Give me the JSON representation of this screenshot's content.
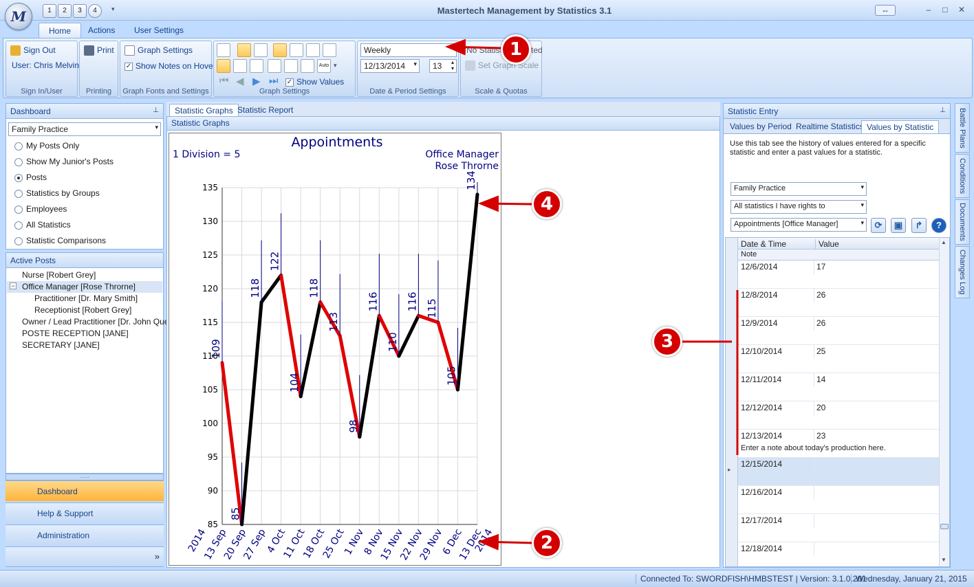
{
  "window": {
    "title": "Mastertech Management by Statistics 3.1",
    "qat": [
      "1",
      "2",
      "3",
      "4"
    ],
    "logo": "M",
    "controls": {
      "restore": "⇔",
      "minimize": "–",
      "maximize": "□",
      "close": "✕"
    }
  },
  "ribbon_tabs": [
    "Home",
    "Actions",
    "User Settings"
  ],
  "ribbon": {
    "sign_in": {
      "sign_out": "Sign Out",
      "user": "User: Chris Melvin",
      "caption": "Sign In/User"
    },
    "printing": {
      "print": "Print",
      "caption": "Printing"
    },
    "fonts": {
      "graph_settings": "Graph Settings",
      "show_notes": "Show Notes on Hover",
      "caption": "Graph Fonts and Settings"
    },
    "graph_settings": {
      "show_values": "Show Values",
      "auto": "Auto",
      "caption": "Graph Settings"
    },
    "date_period": {
      "period": "Weekly",
      "date": "12/13/2014",
      "count": "13",
      "caption": "Date & Period Settings"
    },
    "scale": {
      "no_statistic": "No Statistic Selected",
      "set_graph_scale": "Set Graph Scale",
      "caption": "Scale & Quotas"
    }
  },
  "dashboard": {
    "header": "Dashboard",
    "pin": "⊥",
    "selected": "Family Practice",
    "options": [
      "My Posts Only",
      "Show My Junior's Posts",
      "Posts",
      "Statistics by Groups",
      "Employees",
      "All Statistics",
      "Statistic Comparisons"
    ],
    "selected_option": "Posts"
  },
  "active_posts": {
    "header": "Active Posts",
    "items": [
      {
        "label": "Nurse [Robert Grey]",
        "indent": 0
      },
      {
        "label": "Office Manager [Rose Throrne]",
        "indent": 0
      },
      {
        "label": "Practitioner  [Dr. Mary Smith]",
        "indent": 1
      },
      {
        "label": "Receptionist  [Robert Grey]",
        "indent": 1
      },
      {
        "label": "Owner / Lead Practitioner  [Dr. John Que]",
        "indent": 0
      },
      {
        "label": "POSTE RECEPTION [JANE]",
        "indent": 0
      },
      {
        "label": "SECRETARY [JANE]",
        "indent": 0
      }
    ],
    "collapse": "−"
  },
  "nav_buttons": [
    "Dashboard",
    "Help & Support",
    "Administration"
  ],
  "nav_expand": "»",
  "center": {
    "tabs": [
      "Statistic Graphs",
      "Statistic Report"
    ],
    "subheader": "Statistic Graphs"
  },
  "chart_data": {
    "type": "line",
    "title": "Appointments",
    "division_label": "1 Division = 5",
    "post": "Office Manager",
    "person": "Rose Throrne",
    "x_start_label": "2014",
    "x_end_label": "2014",
    "categories": [
      "13 Sep",
      "20 Sep",
      "27 Sep",
      "4 Oct",
      "11 Oct",
      "18 Oct",
      "25 Oct",
      "1 Nov",
      "8 Nov",
      "15 Nov",
      "22 Nov",
      "29 Nov",
      "6 Dec",
      "13 Dec"
    ],
    "values": [
      109,
      85,
      118,
      122,
      104,
      118,
      113,
      98,
      116,
      110,
      116,
      115,
      105,
      134
    ],
    "ylim": [
      85,
      135
    ],
    "yticks": [
      85,
      90,
      95,
      100,
      105,
      110,
      115,
      120,
      125,
      130,
      135
    ],
    "grid": true,
    "colors": {
      "up": "#000000",
      "down": "#e00000",
      "labels": "#000080"
    }
  },
  "stat_entry": {
    "header": "Statistic Entry",
    "pin": "⊥",
    "tabs": [
      "Values by Period",
      "Realtime Statistics",
      "Values by Statistic"
    ],
    "description": "Use this tab see the history of values entered for a specific statistic and enter a past values for a statistic.",
    "filter1": "Family Practice",
    "filter2": "All statistics I have rights to",
    "filter3": "Appointments [Office Manager]",
    "icons": [
      "refresh-icon",
      "save-icon",
      "export-icon",
      "help-icon"
    ],
    "icon_glyphs": [
      "⟳",
      "▣",
      "↱",
      "?"
    ],
    "col_date": "Date & Time",
    "col_value": "Value",
    "col_note": "Note",
    "rows": [
      {
        "date": "12/6/2014",
        "value": "17",
        "note": ""
      },
      {
        "date": "12/8/2014",
        "value": "26",
        "note": ""
      },
      {
        "date": "12/9/2014",
        "value": "26",
        "note": ""
      },
      {
        "date": "12/10/2014",
        "value": "25",
        "note": ""
      },
      {
        "date": "12/11/2014",
        "value": "14",
        "note": ""
      },
      {
        "date": "12/12/2014",
        "value": "20",
        "note": ""
      },
      {
        "date": "12/13/2014",
        "value": "23",
        "note": "Enter a note about today's production here."
      },
      {
        "date": "12/15/2014",
        "value": "",
        "note": ""
      },
      {
        "date": "12/16/2014",
        "value": "",
        "note": ""
      },
      {
        "date": "12/17/2014",
        "value": "",
        "note": ""
      },
      {
        "date": "12/18/2014",
        "value": "",
        "note": ""
      }
    ]
  },
  "side_tabs": [
    "Battle Plans",
    "Conditions",
    "Documents",
    "Changes Log"
  ],
  "status": {
    "connection": "Connected To: SWORDFISH\\HMBSTEST | Version: 3.1.0.201",
    "date": "Wednesday, January 21, 2015"
  },
  "callouts": [
    "1",
    "2",
    "3",
    "4"
  ]
}
